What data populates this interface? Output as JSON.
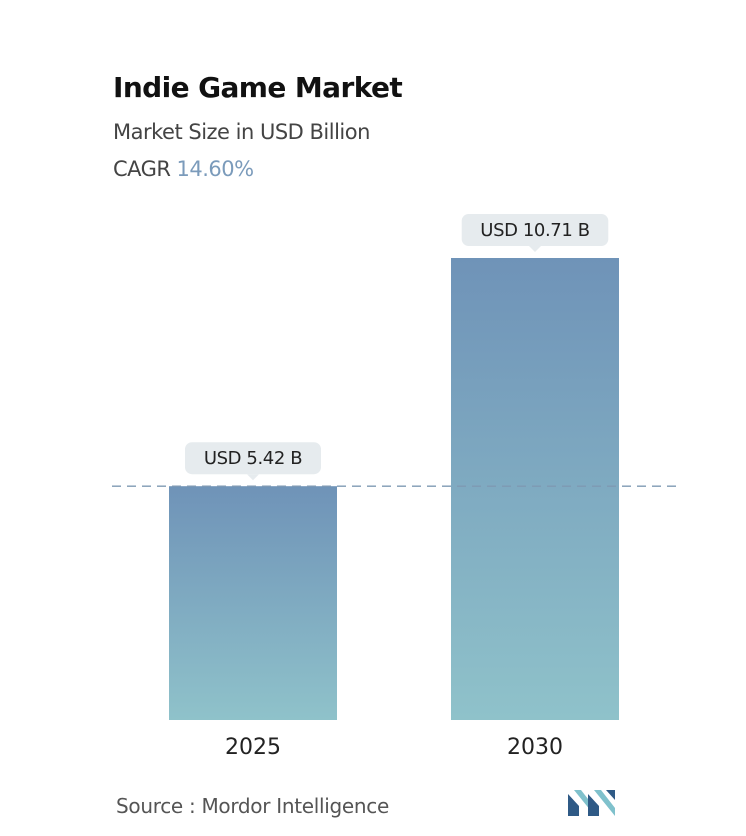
{
  "chart_data": {
    "type": "bar",
    "title": "Indie Game Market",
    "subtitle": "Market Size in USD Billion",
    "cagr_label": "CAGR",
    "cagr_value": "14.60%",
    "categories": [
      "2025",
      "2030"
    ],
    "values": [
      5.42,
      10.71
    ],
    "data_labels": [
      "USD 5.42 B",
      "USD 10.71 B"
    ],
    "reference_line": 5.42,
    "grid": false,
    "legend": "none"
  },
  "source": "Source :  Mordor Intelligence",
  "logo_icon": "mordor-intelligence-logo-icon",
  "colors": {
    "bar_top": "#6f93b8",
    "bar_bottom": "#8fc2ca",
    "label_bg": "#e6ebee",
    "dashed_line": "#7e99b3",
    "cagr_value": "#7b9bbb",
    "logo_dark": "#2f5a86",
    "logo_light": "#7fc1cc"
  }
}
